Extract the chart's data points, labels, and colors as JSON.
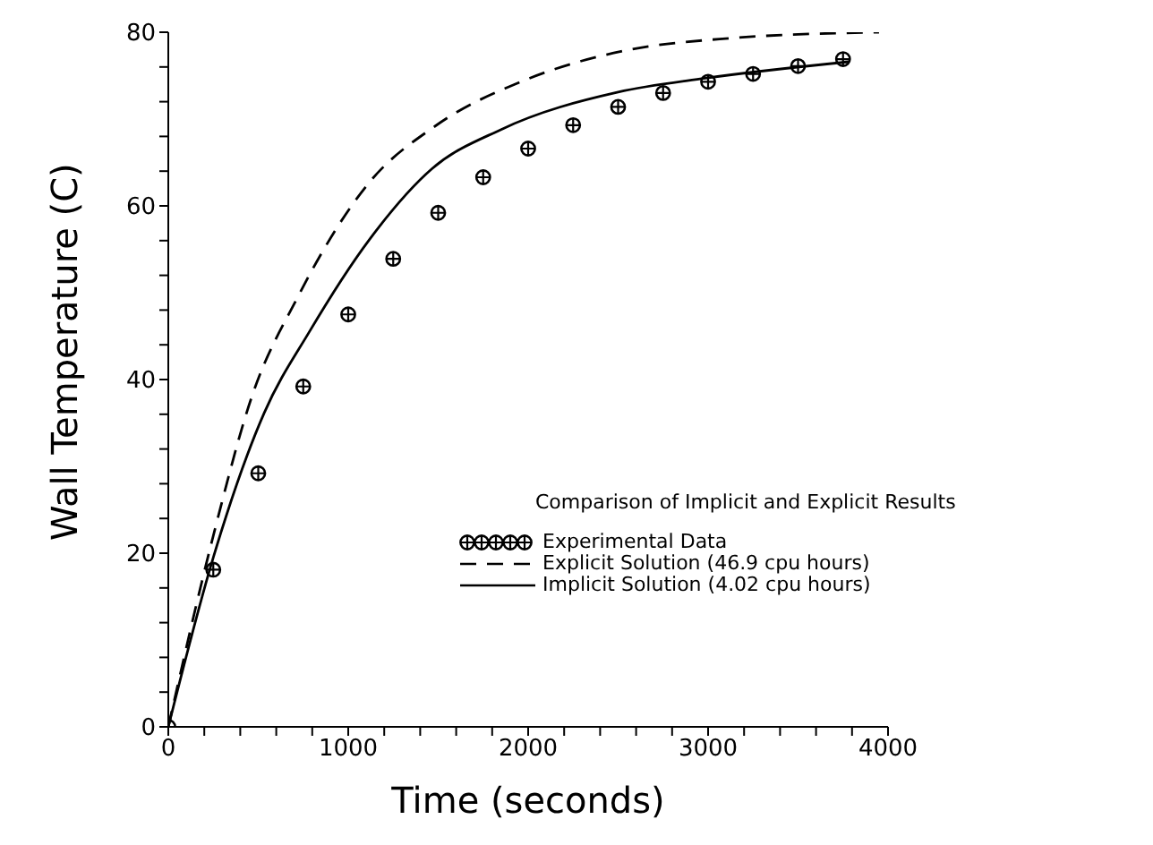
{
  "chart_data": {
    "type": "line",
    "xlabel": "Time  (seconds)",
    "ylabel": "Wall  Temperature  (C)",
    "legend_title": "Comparison of Implicit and Explicit Results",
    "legend": "right",
    "grid": false,
    "xlim": [
      0,
      4000
    ],
    "ylim": [
      0,
      80
    ],
    "xticks": [
      0,
      {
        "value": 200,
        "label": null
      },
      {
        "value": 400,
        "label": null
      },
      {
        "value": 600,
        "label": null
      },
      {
        "value": 800,
        "label": null
      },
      1000,
      {
        "value": 1200,
        "label": null
      },
      {
        "value": 1400,
        "label": null
      },
      {
        "value": 1600,
        "label": null
      },
      {
        "value": 1800,
        "label": null
      },
      2000,
      {
        "value": 2200,
        "label": null
      },
      {
        "value": 2400,
        "label": null
      },
      {
        "value": 2600,
        "label": null
      },
      {
        "value": 2800,
        "label": null
      },
      3000,
      {
        "value": 3200,
        "label": null
      },
      {
        "value": 3400,
        "label": null
      },
      {
        "value": 3600,
        "label": null
      },
      {
        "value": 3800,
        "label": null
      },
      4000
    ],
    "yticks": [
      0,
      {
        "value": 4,
        "label": null
      },
      {
        "value": 8,
        "label": null
      },
      {
        "value": 12,
        "label": null
      },
      {
        "value": 16,
        "label": null
      },
      20,
      {
        "value": 24,
        "label": null
      },
      {
        "value": 28,
        "label": null
      },
      {
        "value": 32,
        "label": null
      },
      {
        "value": 36,
        "label": null
      },
      40,
      {
        "value": 44,
        "label": null
      },
      {
        "value": 48,
        "label": null
      },
      {
        "value": 52,
        "label": null
      },
      {
        "value": 56,
        "label": null
      },
      60,
      {
        "value": 64,
        "label": null
      },
      {
        "value": 68,
        "label": null
      },
      {
        "value": 72,
        "label": null
      },
      {
        "value": 76,
        "label": null
      },
      80
    ],
    "series": [
      {
        "name": "Experimental Data",
        "type": "scatter",
        "marker": "circle",
        "color": "#000000",
        "x": [
          0,
          250,
          500,
          750,
          1000,
          1250,
          1500,
          1750,
          2000,
          2250,
          2500,
          2750,
          3000,
          3250,
          3500,
          3750
        ],
        "values": [
          0,
          18.1,
          29.2,
          39.2,
          47.5,
          53.9,
          59.2,
          63.3,
          66.6,
          69.3,
          71.4,
          73.0,
          74.3,
          75.2,
          76.1,
          76.9
        ]
      },
      {
        "name": "Explicit Solution (46.9 cpu hours)",
        "line_style": "dashed",
        "color": "#000000",
        "x": [
          0,
          250,
          467,
          717,
          1117,
          1484,
          1984,
          2517,
          3117,
          3950
        ],
        "values": [
          0,
          22,
          38.2,
          49.4,
          62.7,
          69.2,
          74.5,
          77.8,
          79.3,
          80.0
        ]
      },
      {
        "name": "Implicit Solution (4.02 cpu hours)",
        "line_style": "solid",
        "color": "#000000",
        "x": [
          0,
          250,
          534,
          784,
          1117,
          1467,
          1850,
          2500,
          2984,
          3784
        ],
        "values": [
          0,
          19.5,
          36.2,
          45.5,
          56.1,
          64.3,
          68.8,
          73.1,
          74.7,
          76.6
        ]
      }
    ]
  }
}
